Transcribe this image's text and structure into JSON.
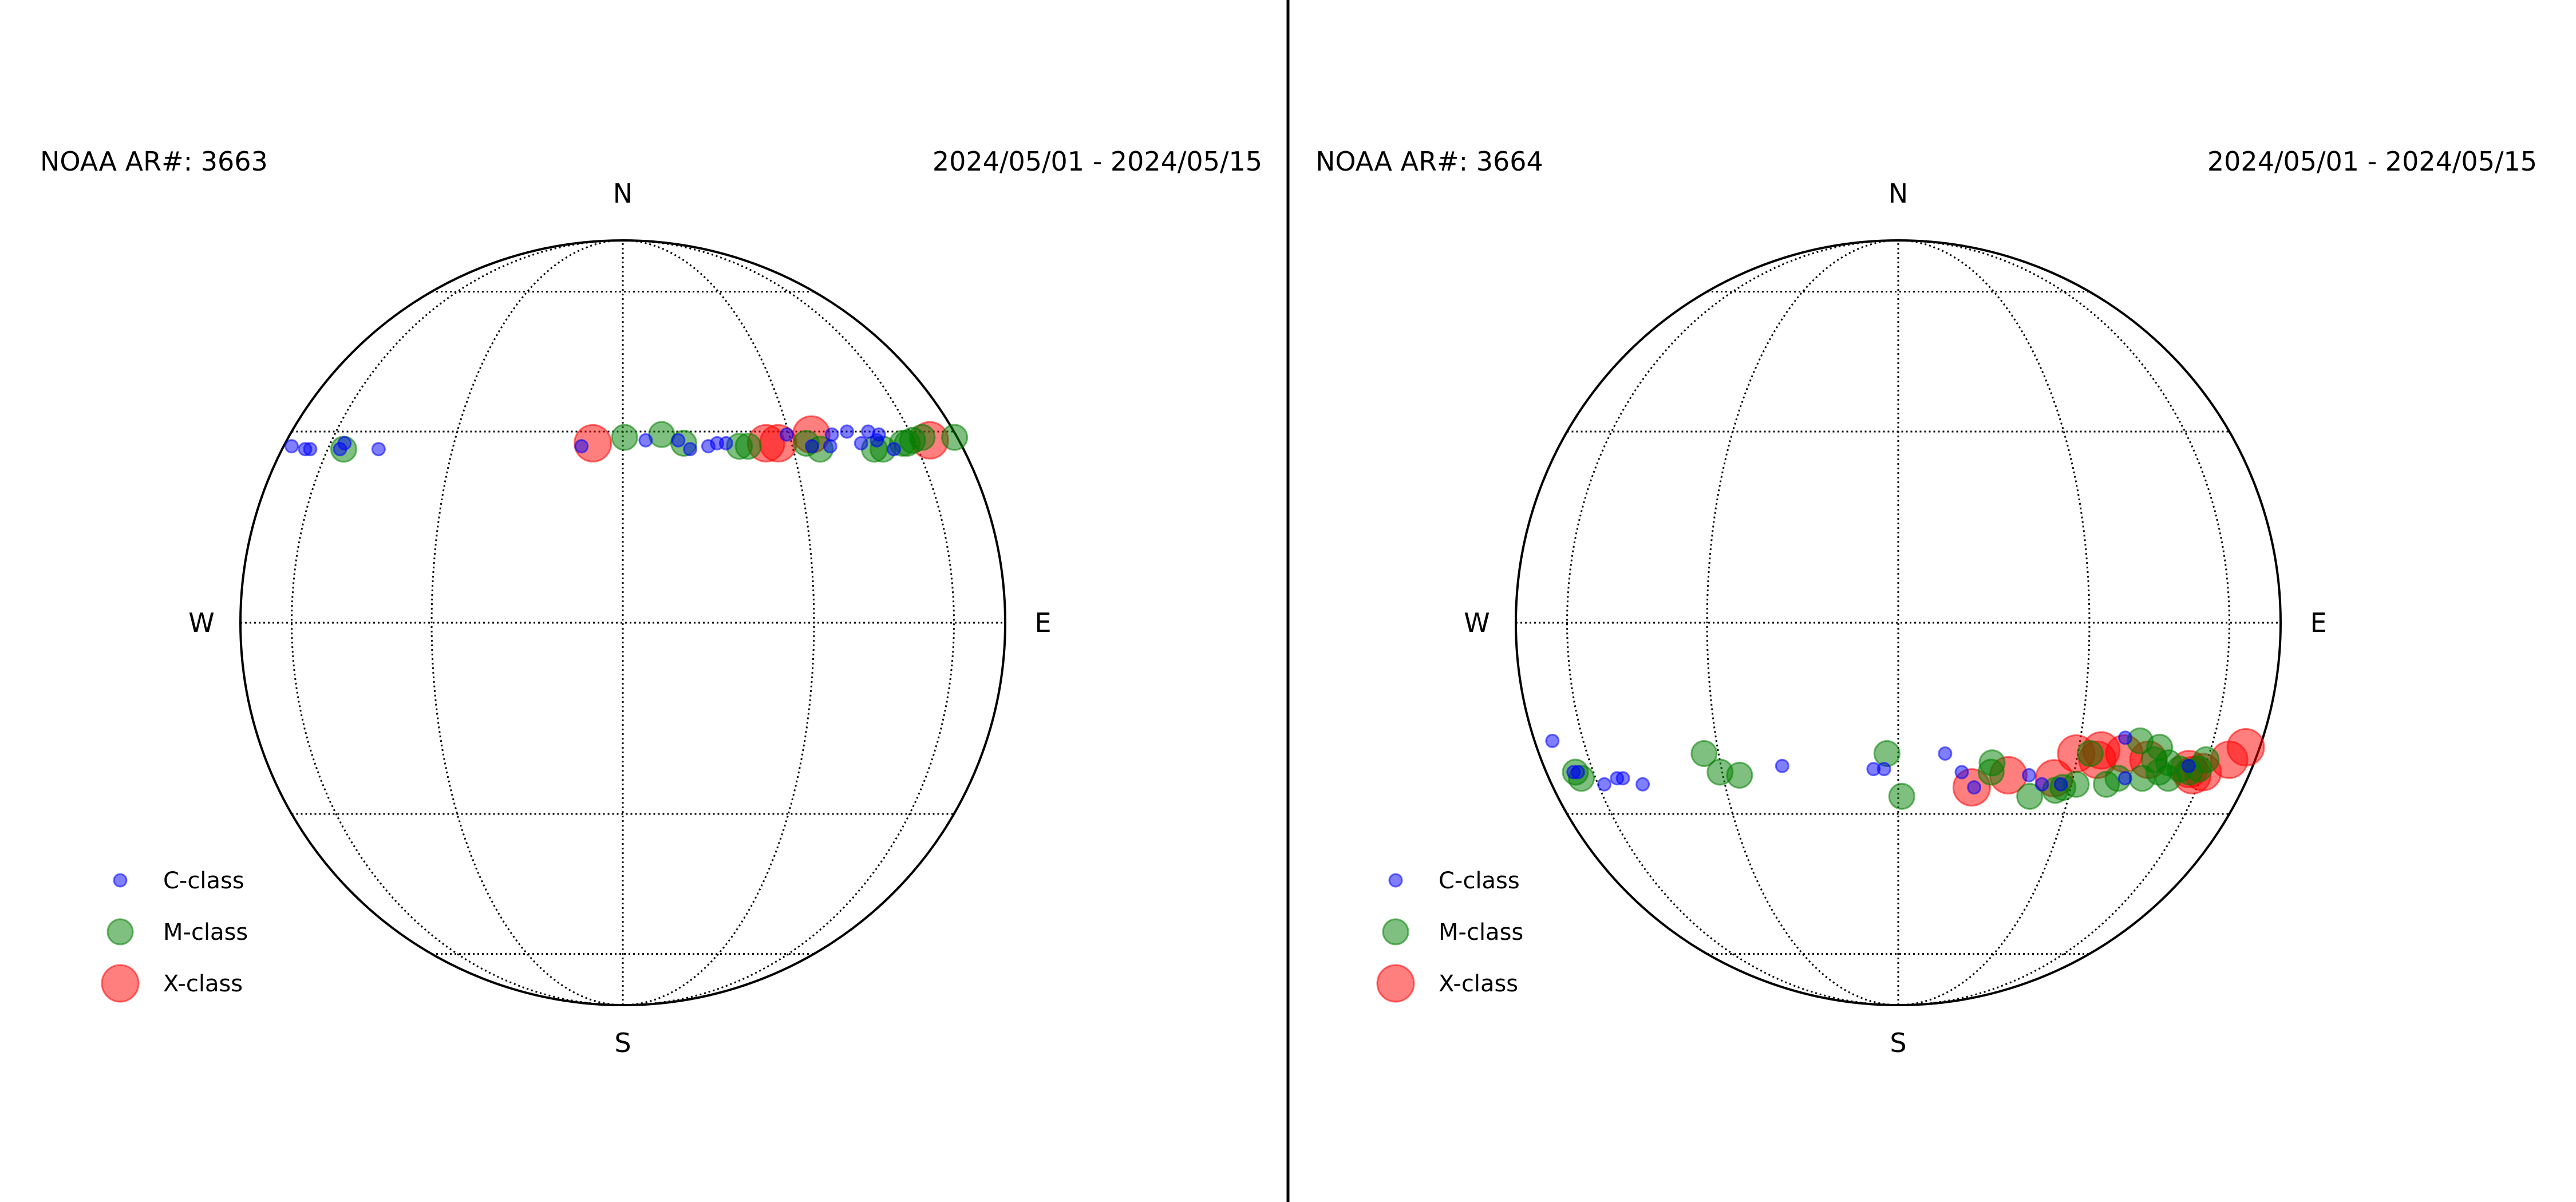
{
  "chart_data": [
    {
      "type": "scatter",
      "title": "NOAA AR#: 3663",
      "date_range": "2024/05/01 - 2024/05/15",
      "compass": {
        "north": "N",
        "south": "S",
        "west": "W",
        "east": "E"
      },
      "projection": "orthographic solar disk, east on right",
      "grid": true,
      "legend": {
        "placement": "lower-left",
        "entries": [
          "C-class",
          "M-class",
          "X-class"
        ]
      },
      "series": [
        {
          "name": "C-class",
          "color": "#0000ff",
          "points": [
            [
              -77.5,
              27.5
            ],
            [
              -68.8,
              27
            ],
            [
              -66.6,
              27
            ],
            [
              -56.1,
              27
            ],
            [
              -55.5,
              28
            ],
            [
              -45.8,
              27
            ],
            [
              -7,
              27.5
            ],
            [
              3.9,
              28.5
            ],
            [
              9.5,
              28.5
            ],
            [
              11.4,
              27
            ],
            [
              14.6,
              27.5
            ],
            [
              16.2,
              28
            ],
            [
              17.8,
              28
            ],
            [
              29.5,
              29.5
            ],
            [
              33.9,
              27.5
            ],
            [
              37.7,
              27.5
            ],
            [
              38.9,
              29.5
            ],
            [
              42.6,
              30
            ],
            [
              44.9,
              28
            ],
            [
              47.8,
              30
            ],
            [
              49.1,
              28.5
            ],
            [
              50.3,
              29.5
            ],
            [
              52.7,
              27
            ]
          ]
        },
        {
          "name": "M-class",
          "color": "#008000",
          "points": [
            [
              -55,
              27
            ],
            [
              0.3,
              29
            ],
            [
              6.7,
              29.5
            ],
            [
              10.4,
              28
            ],
            [
              20.1,
              27.5
            ],
            [
              21.7,
              27.5
            ],
            [
              32.9,
              28
            ],
            [
              35.4,
              27
            ],
            [
              47.6,
              27
            ],
            [
              49.8,
              27
            ],
            [
              55.9,
              28
            ],
            [
              57.4,
              28
            ],
            [
              59.6,
              28.5
            ],
            [
              63.5,
              29
            ],
            [
              82.8,
              29
            ]
          ]
        },
        {
          "name": "X-class",
          "color": "#ff0000",
          "points": [
            [
              -5.1,
              28
            ],
            [
              25.1,
              28
            ],
            [
              27.4,
              28
            ],
            [
              34.5,
              29.5
            ],
            [
              66,
              28.5
            ]
          ]
        }
      ]
    },
    {
      "type": "scatter",
      "title": "NOAA AR#: 3664",
      "date_range": "2024/05/01 - 2024/05/15",
      "compass": {
        "north": "N",
        "south": "S",
        "west": "W",
        "east": "E"
      },
      "projection": "orthographic solar disk, east on right",
      "grid": true,
      "legend": {
        "placement": "lower-left",
        "entries": [
          "C-class",
          "M-class",
          "X-class"
        ]
      },
      "series": [
        {
          "name": "C-class",
          "color": "#0000ff",
          "points": [
            [
              -72,
              -18
            ],
            [
              -67.3,
              -23
            ],
            [
              -65.5,
              -23
            ],
            [
              -58,
              -25
            ],
            [
              -53.6,
              -24
            ],
            [
              -52,
              -24
            ],
            [
              -47.5,
              -25
            ],
            [
              -19.1,
              -22
            ],
            [
              -4,
              -22.5
            ],
            [
              -2.3,
              -22.5
            ],
            [
              7.5,
              -20
            ],
            [
              10.4,
              -23
            ],
            [
              12.7,
              -25.5
            ],
            [
              21.9,
              -23.5
            ],
            [
              24.5,
              -25
            ],
            [
              28,
              -25
            ],
            [
              38.5,
              -17.5
            ],
            [
              40.5,
              -24
            ],
            [
              55,
              -22
            ]
          ]
        },
        {
          "name": "M-class",
          "color": "#008000",
          "points": [
            [
              -66.5,
              -23
            ],
            [
              -65.1,
              -24
            ],
            [
              -32.7,
              -20
            ],
            [
              -30.4,
              -23
            ],
            [
              -26.9,
              -23.5
            ],
            [
              -1.8,
              -20
            ],
            [
              0.6,
              -27
            ],
            [
              15.3,
              -21.5
            ],
            [
              15.3,
              -23
            ],
            [
              22.7,
              -27
            ],
            [
              27.2,
              -26
            ],
            [
              28.5,
              -25.5
            ],
            [
              30.9,
              -25
            ],
            [
              32.3,
              -20
            ],
            [
              36.9,
              -25
            ],
            [
              39,
              -24
            ],
            [
              41.7,
              -18
            ],
            [
              44.3,
              -24
            ],
            [
              45.8,
              -21
            ],
            [
              46.3,
              -19
            ],
            [
              47.8,
              -23
            ],
            [
              49.5,
              -21.5
            ],
            [
              50.6,
              -24
            ],
            [
              52.9,
              -22.5
            ],
            [
              55.8,
              -23
            ],
            [
              58.3,
              -22.5
            ],
            [
              59.6,
              -21
            ]
          ]
        },
        {
          "name": "X-class",
          "color": "#ff0000",
          "points": [
            [
              12.3,
              -25.5
            ],
            [
              18.3,
              -23.5
            ],
            [
              26.5,
              -24
            ],
            [
              29.7,
              -20
            ],
            [
              33.9,
              -21
            ],
            [
              34.3,
              -19.5
            ],
            [
              39,
              -20
            ],
            [
              44.5,
              -21
            ],
            [
              55.4,
              -22.5
            ],
            [
              57,
              -23.5
            ],
            [
              59.9,
              -23
            ],
            [
              68,
              -21
            ],
            [
              74,
              -19
            ]
          ]
        }
      ]
    }
  ]
}
